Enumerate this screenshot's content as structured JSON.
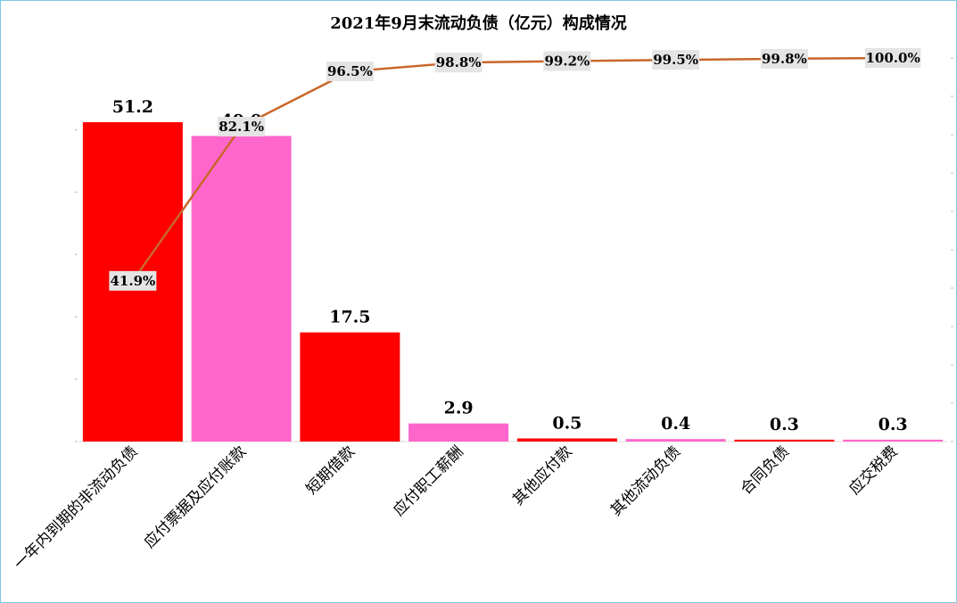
{
  "chart_data": {
    "type": "bar",
    "title": "2021年9月末流动负债（亿元）构成情况",
    "categories": [
      "一年内到期的非流动负债",
      "应付票据及应付账款",
      "短期借款",
      "应付职工薪酬",
      "其他应付款",
      "其他流动负债",
      "合同负债",
      "应交税费"
    ],
    "series": [
      {
        "values": [
          51.2,
          49.0,
          17.5,
          2.9,
          0.5,
          0.4,
          0.3,
          0.3
        ]
      },
      {
        "type": "line",
        "values": [
          41.9,
          82.1,
          96.5,
          98.8,
          99.2,
          99.5,
          99.8,
          100.0
        ]
      }
    ],
    "bar_labels": [
      "51.2",
      "49.0",
      "17.5",
      "2.9",
      "0.5",
      "0.4",
      "0.3",
      "0.3"
    ],
    "cumulative_labels": [
      "41.9%",
      "82.1%",
      "96.5%",
      "98.8%",
      "99.2%",
      "99.5%",
      "99.8%",
      "100.0%"
    ],
    "ylim": [
      0,
      55
    ],
    "y2lim": [
      0,
      110
    ],
    "colors": {
      "bar_odd": "#ff0000",
      "bar_even": "#ff66cc",
      "line": "#c8672a",
      "label_bg": "#e4e4e4"
    },
    "grid": false,
    "legend": "none"
  }
}
